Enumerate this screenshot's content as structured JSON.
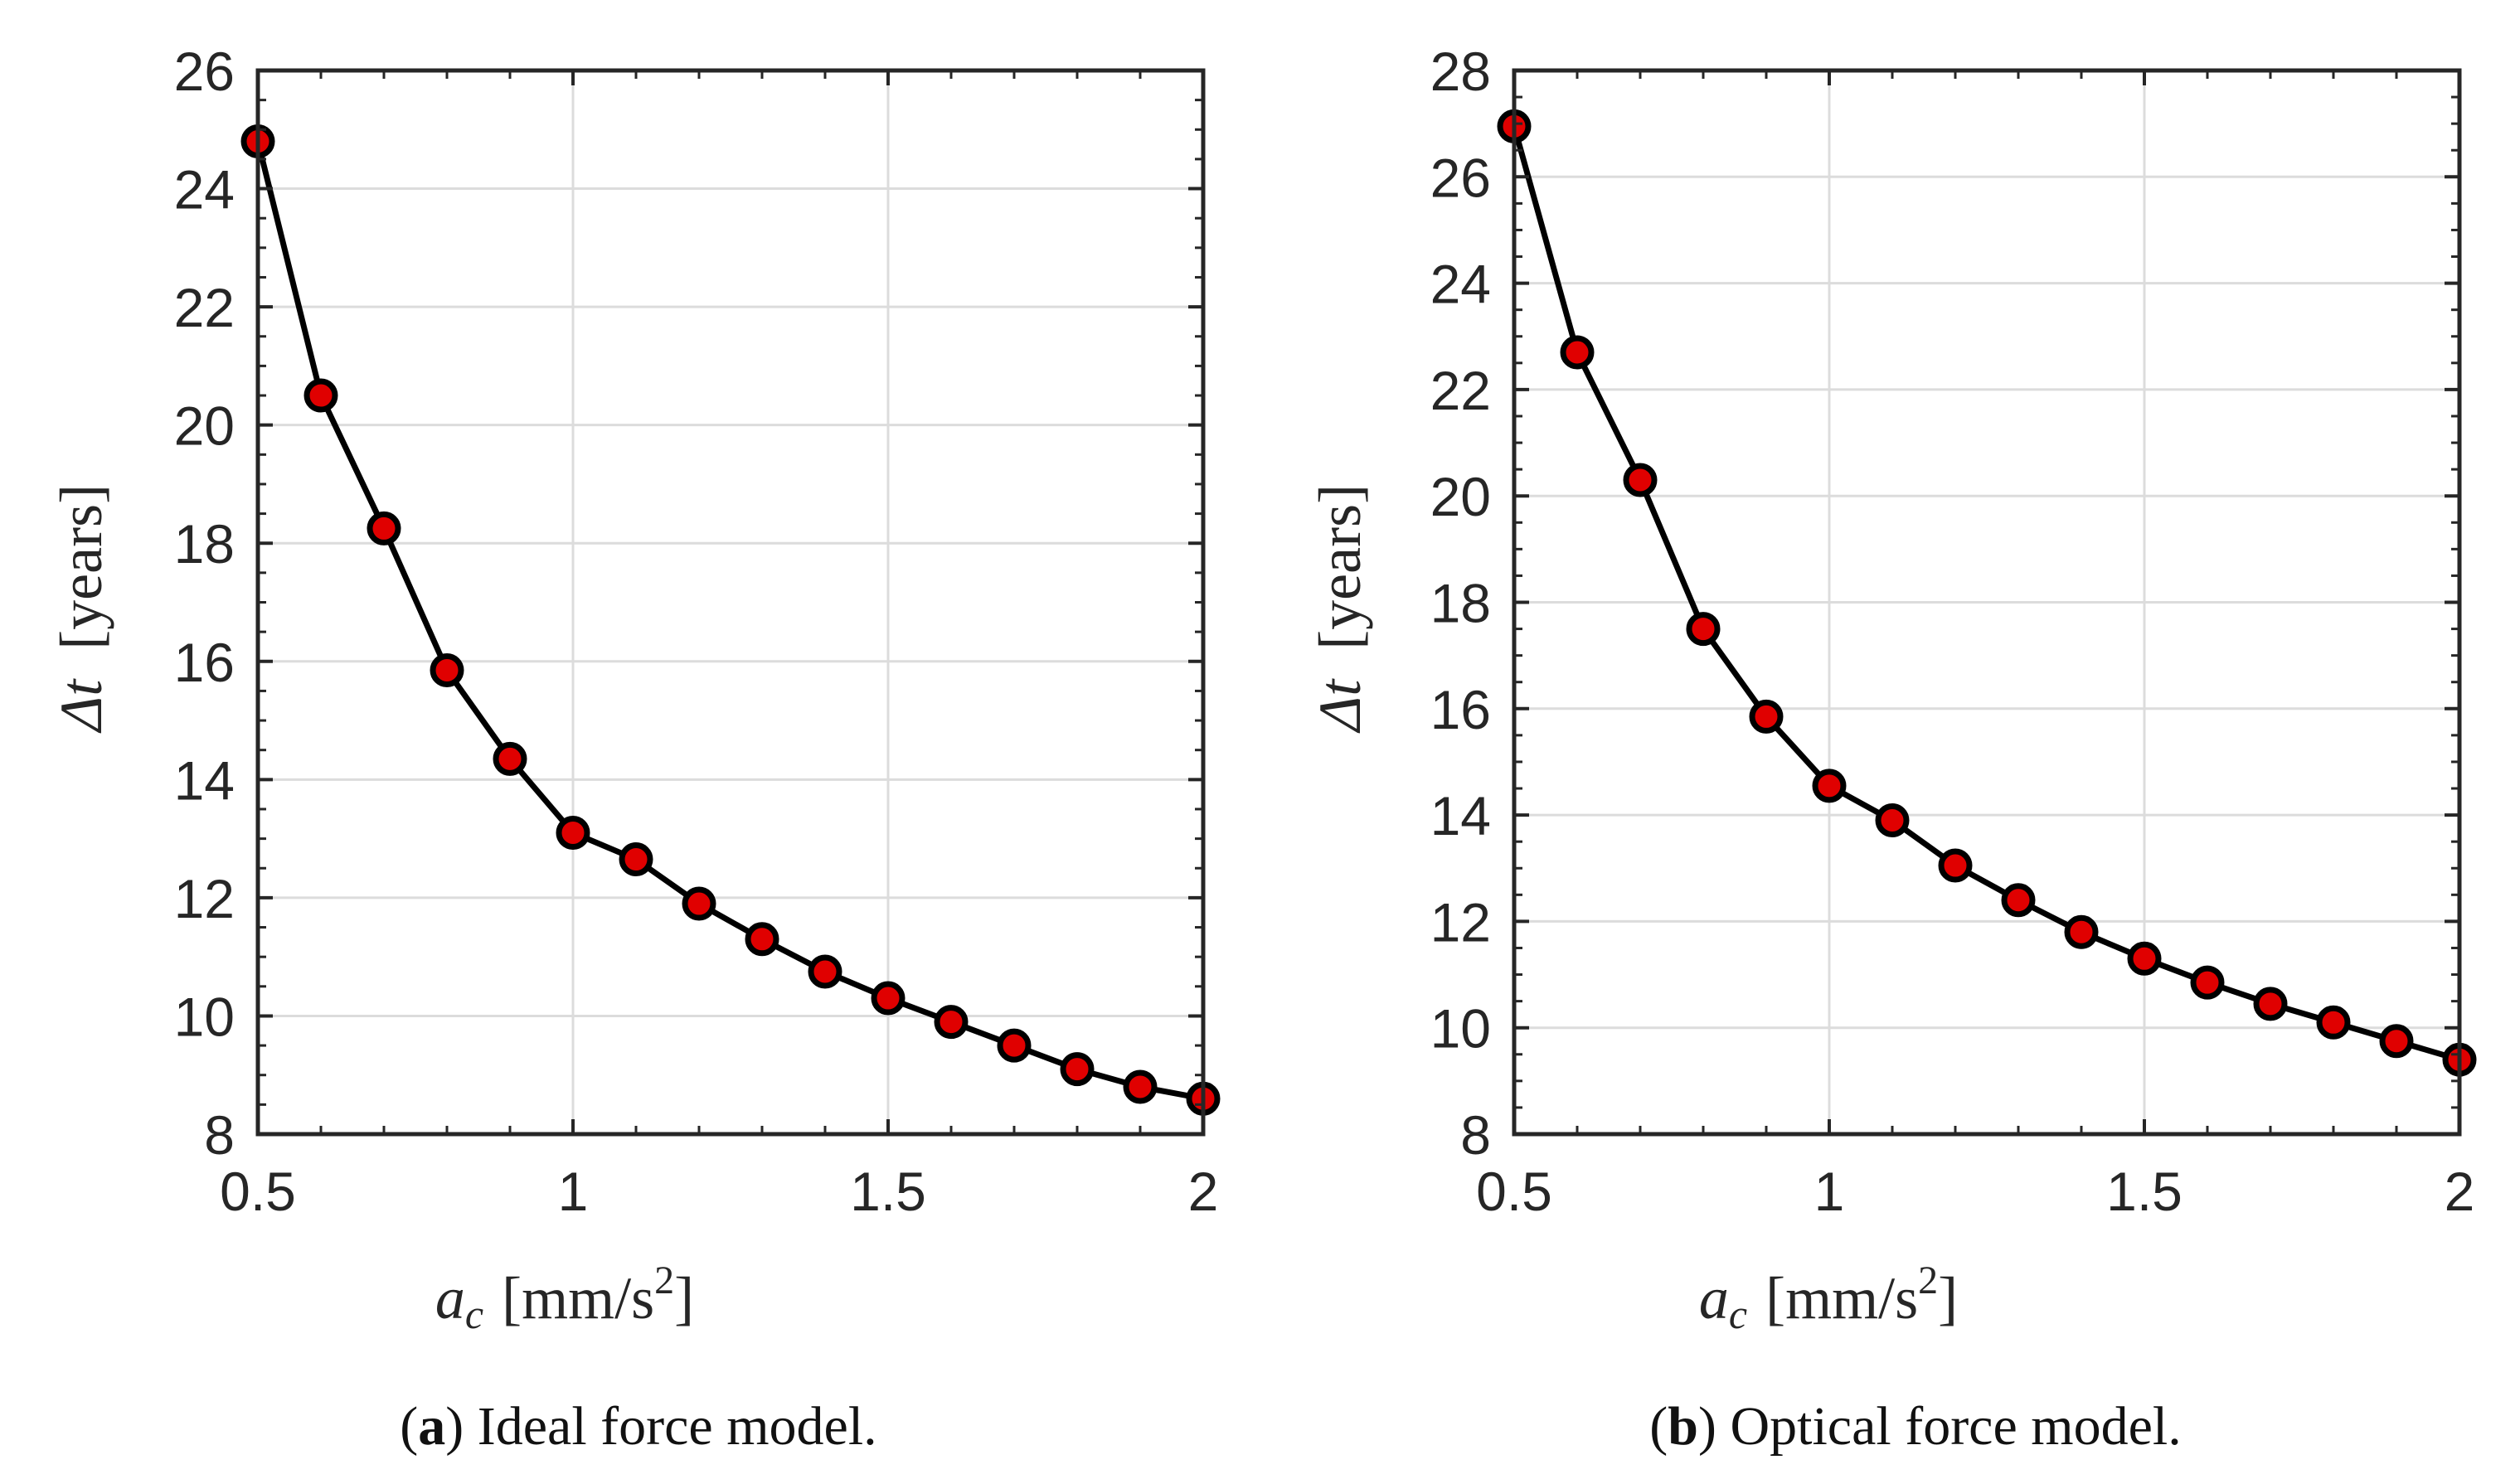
{
  "chart_data": [
    {
      "type": "line",
      "caption_letter": "a",
      "caption_text": ") Ideal force model.",
      "caption_open": "(",
      "ylabel_symbol": "Δt",
      "ylabel_unit": "[years]",
      "xlabel_symbol": "a",
      "xlabel_subscript": "c",
      "xlabel_unit": "[mm/s",
      "xlabel_power": "2",
      "xlabel_close": "]",
      "xlim": [
        0.5,
        2
      ],
      "ylim": [
        8,
        26
      ],
      "xticks": [
        0.5,
        1,
        1.5,
        2
      ],
      "xtick_labels": [
        "0.5",
        "1",
        "1.5",
        "2"
      ],
      "yticks": [
        8,
        10,
        12,
        14,
        16,
        18,
        20,
        22,
        24,
        26
      ],
      "ytick_labels": [
        "8",
        "10",
        "12",
        "14",
        "16",
        "18",
        "20",
        "22",
        "24",
        "26"
      ],
      "grid": true,
      "series": [
        {
          "name": "Δt",
          "x": [
            0.5,
            0.6,
            0.7,
            0.8,
            0.9,
            1.0,
            1.1,
            1.2,
            1.3,
            1.4,
            1.5,
            1.6,
            1.7,
            1.8,
            1.9,
            2.0
          ],
          "y": [
            24.8,
            20.5,
            18.25,
            15.85,
            14.35,
            13.1,
            12.65,
            11.9,
            11.3,
            10.75,
            10.3,
            9.9,
            9.5,
            9.1,
            8.8,
            8.6
          ]
        }
      ]
    },
    {
      "type": "line",
      "caption_letter": "b",
      "caption_text": ") Optical force model.",
      "caption_open": "(",
      "ylabel_symbol": "Δt",
      "ylabel_unit": "[years]",
      "xlabel_symbol": "a",
      "xlabel_subscript": "c",
      "xlabel_unit": "[mm/s",
      "xlabel_power": "2",
      "xlabel_close": "]",
      "xlim": [
        0.5,
        2
      ],
      "ylim": [
        8,
        28
      ],
      "xticks": [
        0.5,
        1,
        1.5,
        2
      ],
      "xtick_labels": [
        "0.5",
        "1",
        "1.5",
        "2"
      ],
      "yticks": [
        8,
        10,
        12,
        14,
        16,
        18,
        20,
        22,
        24,
        26,
        28
      ],
      "ytick_labels": [
        "8",
        "10",
        "12",
        "14",
        "16",
        "18",
        "20",
        "22",
        "24",
        "26",
        "28"
      ],
      "grid": true,
      "series": [
        {
          "name": "Δt",
          "x": [
            0.5,
            0.6,
            0.7,
            0.8,
            0.9,
            1.0,
            1.1,
            1.2,
            1.3,
            1.4,
            1.5,
            1.6,
            1.7,
            1.8,
            1.9,
            2.0
          ],
          "y": [
            26.95,
            22.7,
            20.3,
            17.5,
            15.85,
            14.55,
            13.9,
            13.05,
            12.4,
            11.8,
            11.3,
            10.85,
            10.45,
            10.1,
            9.75,
            9.4
          ]
        }
      ]
    }
  ],
  "style": {
    "line_color": "#000000",
    "marker_fill": "#e00000",
    "marker_edge": "#000000",
    "grid_color": "#dcdcdc",
    "axis_color": "#262626"
  }
}
